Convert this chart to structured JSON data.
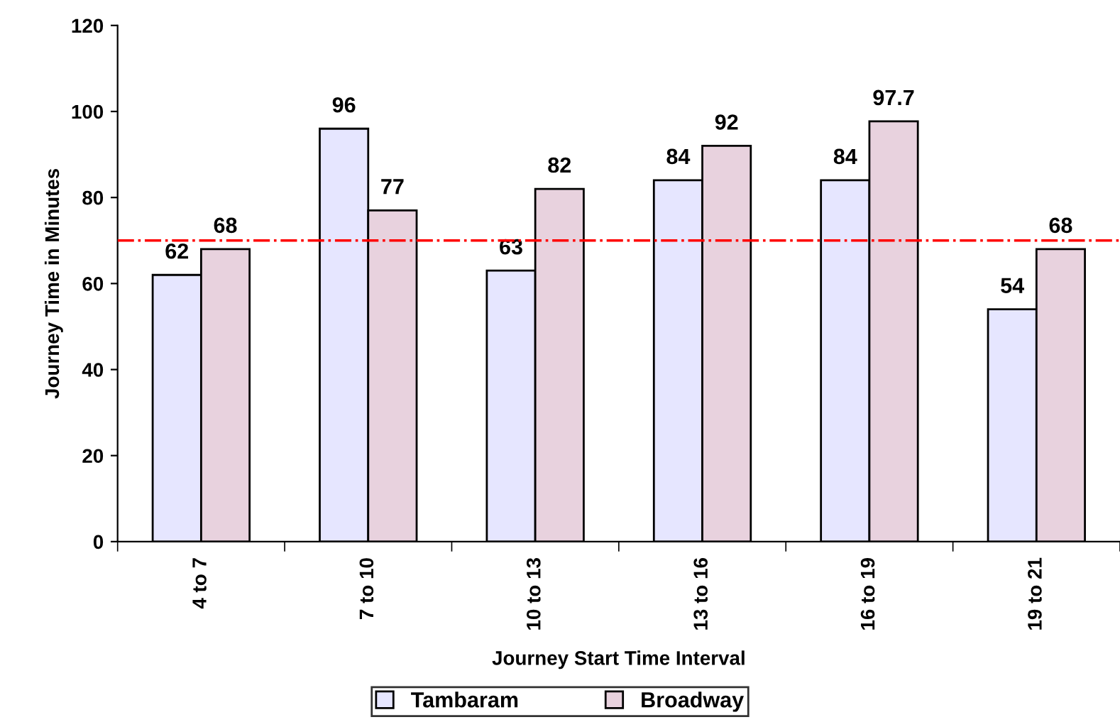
{
  "chart_data": {
    "type": "bar",
    "xlabel": "Journey Start Time Interval",
    "ylabel": "Journey Time in Minutes",
    "categories": [
      "4 to 7",
      "7 to 10",
      "10 to 13",
      "13 to 16",
      "16 to 19",
      "19 to 21"
    ],
    "series": [
      {
        "name": "Tambaram",
        "color": "#e6e6ff",
        "values": [
          62,
          96,
          63,
          84,
          84,
          54
        ]
      },
      {
        "name": "Broadway",
        "color": "#e8d2de",
        "values": [
          68,
          77,
          82,
          92,
          97.7,
          68
        ]
      }
    ],
    "ylim": [
      0,
      120
    ],
    "yticks": [
      0,
      20,
      40,
      60,
      80,
      100,
      120
    ],
    "data_labels": true,
    "grid": false,
    "legend": "bottom",
    "ref_lines": [
      {
        "axis": "y",
        "value": 70,
        "color": "#ff0000",
        "line_style": "dashdot"
      }
    ]
  }
}
